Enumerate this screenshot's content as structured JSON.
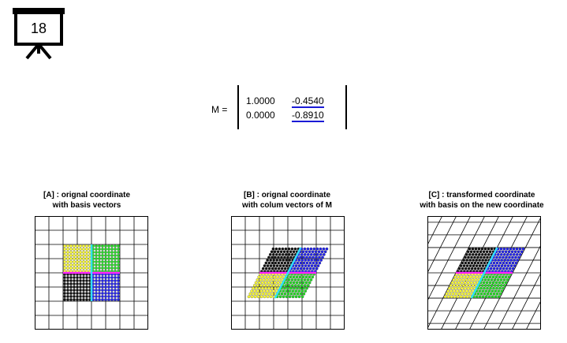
{
  "slide_number": "18",
  "matrix": {
    "lhs": "M =",
    "rows": [
      [
        "1.0000",
        "-0.4540"
      ],
      [
        "0.0000",
        "-0.8910"
      ]
    ],
    "col_vector_color": "#1a1ad6"
  },
  "panels": [
    {
      "title_line1": "[A] : orignal coordinate",
      "title_line2": "with basis vectors"
    },
    {
      "title_line1": "[B] : orignal coordinate",
      "title_line2": "with colum vectors of M"
    },
    {
      "title_line1": "[C] : transformed coordinate",
      "title_line2": "with basis on the new coordinate"
    }
  ],
  "transform": {
    "a": 1.0,
    "b": -0.454,
    "c": 0.0,
    "d": -0.891
  },
  "quadrant_colors": {
    "top_left": "#ffff33",
    "top_right": "#22dd22",
    "bottom_left": "#111111",
    "bottom_right": "#2222ee",
    "axis_x": "#ff22ff",
    "axis_y": "#33ddff"
  }
}
